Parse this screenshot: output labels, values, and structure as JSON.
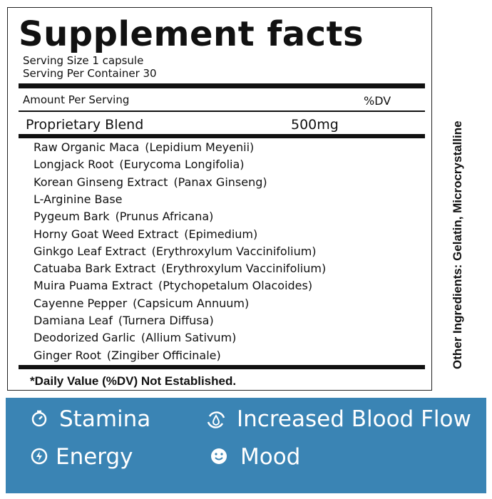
{
  "label": {
    "title": "Supplement facts",
    "serving_size": "Serving Size 1 capsule",
    "servings_per_container": "Serving Per Container 30",
    "amount_per_serving": "Amount Per Serving",
    "dv_header": "%DV",
    "blend": {
      "name": "Proprietary Blend",
      "amount": "500mg"
    },
    "ingredients": [
      {
        "name": "Raw Organic Maca",
        "botanical": "(Lepidium Meyenii)"
      },
      {
        "name": "Longjack Root",
        "botanical": "(Eurycoma Longifolia)"
      },
      {
        "name": "Korean Ginseng Extract",
        "botanical": "(Panax Ginseng)"
      },
      {
        "name": "L-Arginine Base",
        "botanical": null
      },
      {
        "name": "Pygeum Bark",
        "botanical": "(Prunus Africana)"
      },
      {
        "name": "Horny Goat Weed Extract",
        "botanical": "(Epimedium)"
      },
      {
        "name": "Ginkgo Leaf Extract",
        "botanical": "(Erythroxylum Vaccinifolium)"
      },
      {
        "name": "Catuaba Bark Extract",
        "botanical": "(Erythroxylum Vaccinifolium)"
      },
      {
        "name": "Muira Puama Extract",
        "botanical": "(Ptychopetalum Olacoides)"
      },
      {
        "name": "Cayenne Pepper",
        "botanical": "(Capsicum Annuum)"
      },
      {
        "name": "Damiana Leaf",
        "botanical": "(Turnera Diffusa)"
      },
      {
        "name": "Deodorized Garlic",
        "botanical": "(Allium Sativum)"
      },
      {
        "name": "Ginger Root",
        "botanical": "(Zingiber Officinale)"
      }
    ],
    "footnote": "*Daily Value (%DV) Not Established.",
    "other_ingredients": "Other Ingredients: Gelatin, Microcrystalline"
  },
  "benefits": [
    "Stamina",
    "Increased Blood Flow",
    "Energy",
    "Mood"
  ]
}
